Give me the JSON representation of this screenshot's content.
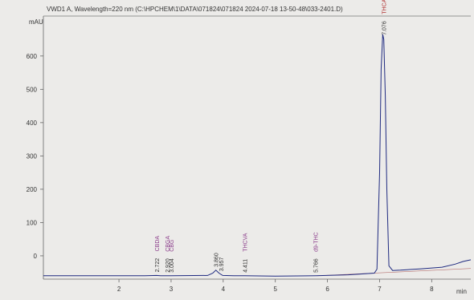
{
  "chart_data": {
    "type": "line",
    "title": "VWD1 A, Wavelength=220 nm (C:\\HPCHEM\\1\\DATA\\071824\\071824 2024-07-18 13-50-48\\033-2401.D)",
    "ylabel": "mAU",
    "xlabel": "min",
    "xlim": [
      0.55,
      8.75
    ],
    "ylim": [
      -70,
      720
    ],
    "x_ticks": [
      2,
      3,
      4,
      5,
      6,
      7,
      8
    ],
    "y_ticks": [
      0,
      100,
      200,
      300,
      400,
      500,
      600
    ],
    "series": [
      {
        "x": [
          0.55,
          2.5,
          2.72,
          2.8,
          3.0,
          3.7,
          3.8,
          3.86,
          3.92,
          3.99,
          4.2,
          4.41,
          5.0,
          5.77,
          6.4,
          6.9,
          6.95,
          7.0,
          7.03,
          7.06,
          7.08,
          7.11,
          7.14,
          7.18,
          7.25,
          7.4,
          7.8,
          8.2,
          8.45,
          8.6,
          8.75
        ],
        "y": [
          -60,
          -60,
          -59,
          -60,
          -60,
          -59,
          -52,
          -43,
          -52,
          -59,
          -60,
          -60,
          -61,
          -60,
          -57,
          -52,
          -40,
          250,
          560,
          665,
          650,
          480,
          200,
          -30,
          -44,
          -43,
          -39,
          -34,
          -25,
          -17,
          -12
        ]
      }
    ],
    "peaks": [
      {
        "rt": "2.722",
        "name": "CBDA"
      },
      {
        "rt": "2.920",
        "name": "CBGA"
      },
      {
        "rt": "3.004",
        "name": "CBG"
      },
      {
        "rt": "3.860",
        "name": ""
      },
      {
        "rt": "3.957",
        "name": ""
      },
      {
        "rt": "4.411",
        "name": "THCVA"
      },
      {
        "rt": "5.766",
        "name": "d9-THC"
      },
      {
        "rt": "7.076",
        "name": "THCA"
      }
    ]
  }
}
